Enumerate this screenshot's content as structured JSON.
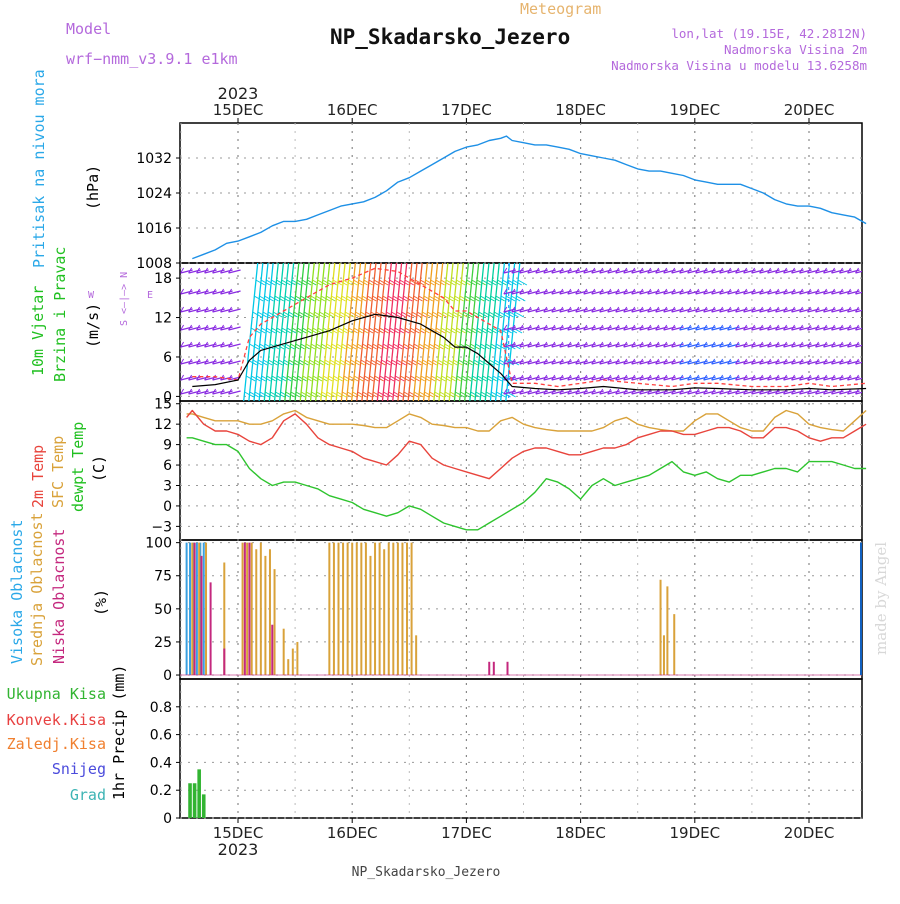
{
  "header": {
    "model_label": "Model",
    "model_name": "wrf−nmm_v3.9.1  e1km",
    "meteogram_label": "Meteogram",
    "station_title": "NP_Skadarsko_Jezero",
    "lonlat": "lon,lat (19.15E, 42.2812N)",
    "altitude": "Nadmorska Visina 2m",
    "model_altitude": "Nadmorska Visina u modelu 13.6258m",
    "footer_station": "NP_Skadarsko_Jezero",
    "watermark": "made by Angel"
  },
  "colors": {
    "pressure": "#1e90e6",
    "temp2m": "#e8443c",
    "sfctemp": "#d9a23a",
    "dewpoint": "#2ec42e",
    "wind_speed": "#000000",
    "gust": "#ff4040",
    "cloud_high": "#3aa0e0",
    "cloud_mid": "#d9a23a",
    "cloud_low": "#c4287e",
    "precip_total": "#32b432",
    "precip_conv": "#e84040",
    "precip_frozen": "#f08030",
    "precip_snow": "#4b4bdc",
    "precip_grad": "#3cb4b4",
    "text_purple": "#b469dc",
    "text_gold": "#e6b46e"
  },
  "time_axis": {
    "year": "2023",
    "day_labels": [
      "15DEC",
      "16DEC",
      "17DEC",
      "18DEC",
      "19DEC",
      "20DEC"
    ]
  },
  "panels": {
    "pressure": {
      "label": "Pritisak na nivou mora",
      "unit": "(hPa)",
      "ticks": [
        "1008",
        "1016",
        "1024",
        "1032"
      ]
    },
    "wind": {
      "label_line1": "10m Vjetar",
      "label_line2": "Brzina i Pravac",
      "unit": "(m/s)",
      "compass_ns": "S <—|—> N",
      "compass_w": "W",
      "compass_e": "E",
      "ticks": [
        "0",
        "6",
        "12",
        "18"
      ]
    },
    "temperature": {
      "label_2m": "2m Temp",
      "label_sfc": "SFC Temp",
      "label_dew": "dewpt Temp",
      "unit": "(C)",
      "ticks": [
        "−3",
        "0",
        "3",
        "6",
        "9",
        "12",
        "15"
      ]
    },
    "cloud": {
      "label_high": "Visoka Oblacnost",
      "label_mid": "Srednja Oblacnost",
      "label_low": "Niska Oblacnost",
      "unit": "(%)",
      "ticks": [
        "0",
        "25",
        "50",
        "75",
        "100"
      ]
    },
    "precip": {
      "legend_total": "Ukupna Kisa",
      "legend_conv": "Konvek.Kisa",
      "legend_frozen": "Zaledj.Kisa",
      "legend_snow": "Snijeg",
      "legend_grad": "Grad",
      "unit": "1hr Precip (mm)",
      "ticks": [
        "0",
        "0.2",
        "0.4",
        "0.6",
        "0.8"
      ]
    }
  },
  "chart_data": [
    {
      "type": "line",
      "panel": "pressure",
      "ylim": [
        1008,
        1040
      ],
      "x_days": [
        14.6,
        14.7,
        14.8,
        14.9,
        15.0,
        15.1,
        15.2,
        15.3,
        15.4,
        15.5,
        15.6,
        15.7,
        15.8,
        15.9,
        16.0,
        16.1,
        16.2,
        16.3,
        16.4,
        16.5,
        16.6,
        16.7,
        16.8,
        16.9,
        17.0,
        17.1,
        17.2,
        17.3,
        17.35,
        17.4,
        17.5,
        17.6,
        17.7,
        17.8,
        17.9,
        18.0,
        18.1,
        18.2,
        18.3,
        18.4,
        18.5,
        18.6,
        18.7,
        18.8,
        18.9,
        19.0,
        19.1,
        19.2,
        19.3,
        19.4,
        19.5,
        19.6,
        19.7,
        19.8,
        19.9,
        20.0,
        20.1,
        20.2,
        20.3,
        20.4,
        20.5
      ],
      "values": [
        1009,
        1010,
        1011,
        1012.5,
        1013,
        1014,
        1015,
        1016.5,
        1017.5,
        1017.5,
        1018,
        1019,
        1020,
        1021,
        1021.5,
        1022,
        1023,
        1024.5,
        1026.5,
        1027.5,
        1029,
        1030.5,
        1032,
        1033.5,
        1034.5,
        1035,
        1036,
        1036.5,
        1037,
        1036,
        1035.5,
        1035,
        1035,
        1034.5,
        1034,
        1033,
        1032.5,
        1032,
        1031.5,
        1030.5,
        1029.5,
        1029,
        1029,
        1028.5,
        1028,
        1027,
        1026.5,
        1026,
        1026,
        1026,
        1025,
        1024,
        1022.5,
        1021.5,
        1021,
        1021,
        1020.5,
        1019.5,
        1019,
        1018.5,
        1017
      ]
    },
    {
      "type": "line",
      "panel": "wind",
      "ylim": [
        0,
        20
      ],
      "x_days": [
        14.6,
        14.8,
        15.0,
        15.1,
        15.2,
        15.4,
        15.6,
        15.8,
        16.0,
        16.2,
        16.4,
        16.6,
        16.8,
        16.9,
        17.0,
        17.1,
        17.2,
        17.3,
        17.4,
        17.6,
        17.8,
        18.0,
        18.2,
        18.5,
        18.8,
        19.0,
        19.2,
        19.5,
        19.8,
        20.0,
        20.2,
        20.5
      ],
      "speed": [
        1.5,
        1.8,
        2.5,
        5.5,
        7,
        8,
        9,
        10,
        11.5,
        12.5,
        12,
        11,
        9,
        7.5,
        7.5,
        6.5,
        5,
        3.5,
        1.5,
        1.2,
        1.0,
        1.2,
        1.5,
        1.0,
        1.0,
        1.3,
        1.2,
        1.0,
        1.0,
        1.2,
        1.0,
        1.2
      ],
      "gust": [
        3,
        3,
        2.5,
        9,
        11,
        13,
        15,
        17,
        18,
        19.5,
        19,
        17,
        15,
        13,
        13,
        12,
        11,
        10,
        2,
        2,
        1.5,
        2,
        2.5,
        2,
        1.5,
        2,
        2,
        1.5,
        1.5,
        2,
        1.5,
        2
      ]
    },
    {
      "type": "line",
      "panel": "temperature",
      "ylim": [
        -5,
        15
      ],
      "x_days": [
        14.55,
        14.6,
        14.7,
        14.8,
        14.9,
        15.0,
        15.1,
        15.2,
        15.3,
        15.4,
        15.5,
        15.6,
        15.7,
        15.8,
        15.9,
        16.0,
        16.1,
        16.2,
        16.3,
        16.4,
        16.5,
        16.6,
        16.7,
        16.8,
        16.9,
        17.0,
        17.1,
        17.2,
        17.3,
        17.4,
        17.5,
        17.6,
        17.7,
        17.8,
        17.9,
        18.0,
        18.1,
        18.2,
        18.3,
        18.4,
        18.5,
        18.6,
        18.7,
        18.8,
        18.9,
        19.0,
        19.1,
        19.2,
        19.3,
        19.4,
        19.5,
        19.6,
        19.7,
        19.8,
        19.9,
        20.0,
        20.1,
        20.2,
        20.3,
        20.4,
        20.5
      ],
      "temp2m": [
        13,
        14,
        12,
        11,
        11,
        10.5,
        9.5,
        9,
        10,
        12.5,
        13.5,
        12,
        10,
        9,
        8.5,
        8,
        7,
        6.5,
        6,
        7.5,
        9.5,
        9,
        7,
        6,
        5.5,
        5,
        4.5,
        4,
        5.5,
        7,
        8,
        8.5,
        8.5,
        8,
        7.5,
        7.5,
        8,
        8.5,
        8.5,
        9,
        10,
        10.5,
        11,
        11,
        10.5,
        10.5,
        11,
        11.5,
        11.5,
        11,
        10,
        10,
        11.5,
        11.5,
        11,
        10,
        9.5,
        10,
        10,
        11,
        12
      ],
      "sfctemp": [
        13.5,
        13.5,
        13,
        12.5,
        12.5,
        12.5,
        12,
        12,
        12.5,
        13.5,
        14,
        13,
        12.5,
        12,
        12,
        12,
        11.8,
        11.5,
        11.5,
        12.5,
        13.5,
        13,
        12,
        11.8,
        11.5,
        11.5,
        11,
        11,
        12.5,
        13,
        12,
        11.5,
        11.2,
        11,
        11,
        11,
        11,
        11.5,
        12.5,
        13,
        12,
        11.5,
        11.2,
        11,
        11,
        12.5,
        13.5,
        13.5,
        12.5,
        11.5,
        11,
        11,
        13,
        14,
        13.5,
        12,
        11.5,
        11.2,
        11,
        12.5,
        14
      ],
      "dewpoint": [
        10,
        10,
        9.5,
        9,
        9,
        8,
        5.5,
        4,
        3,
        3.5,
        3.5,
        3,
        2.5,
        1.5,
        1,
        0.5,
        -0.5,
        -1,
        -1.5,
        -1,
        0,
        -0.5,
        -1.5,
        -2.5,
        -3,
        -3.5,
        -3.5,
        -2.5,
        -1.5,
        -0.5,
        0.5,
        2,
        4,
        3.5,
        2.5,
        1,
        3,
        4,
        3,
        3.5,
        4,
        4.5,
        5.5,
        6.5,
        5,
        4.5,
        5,
        4,
        3.5,
        4.5,
        4.5,
        5,
        5.5,
        5.5,
        5,
        6.5,
        6.5,
        6.5,
        6,
        5.5,
        5.5
      ]
    },
    {
      "type": "bar",
      "panel": "cloud",
      "ylim": [
        0,
        100
      ],
      "series": [
        {
          "key": "high",
          "x_days": [
            14.55,
            14.58,
            14.61,
            14.64,
            14.67,
            14.7
          ],
          "values": [
            100,
            100,
            100,
            100,
            100,
            100
          ]
        },
        {
          "key": "mid",
          "x_days": [
            14.6,
            14.66,
            14.72,
            14.88,
            15.04,
            15.08,
            15.12,
            15.16,
            15.2,
            15.24,
            15.28,
            15.32,
            15.4,
            15.44,
            15.48,
            15.52,
            15.8,
            15.84,
            15.88,
            15.92,
            15.96,
            16.0,
            16.04,
            16.08,
            16.12,
            16.16,
            16.2,
            16.24,
            16.28,
            16.32,
            16.36,
            16.4,
            16.44,
            16.48,
            16.52,
            16.56,
            18.7,
            18.73,
            18.76,
            18.82
          ],
          "values": [
            100,
            100,
            100,
            85,
            100,
            100,
            100,
            95,
            100,
            90,
            95,
            80,
            35,
            12,
            20,
            25,
            100,
            100,
            100,
            100,
            100,
            100,
            100,
            100,
            100,
            90,
            100,
            100,
            95,
            100,
            100,
            100,
            100,
            100,
            100,
            30,
            72,
            30,
            67,
            46
          ]
        },
        {
          "key": "low",
          "x_days": [
            14.62,
            14.68,
            14.76,
            14.88,
            15.06,
            15.1,
            15.3,
            17.2,
            17.24,
            17.36
          ],
          "values": [
            100,
            90,
            70,
            20,
            100,
            100,
            38,
            10,
            10,
            10
          ]
        }
      ]
    },
    {
      "type": "bar",
      "panel": "precip",
      "ylim": [
        0,
        1.0
      ],
      "series": [
        {
          "key": "total",
          "x_days": [
            14.58,
            14.62,
            14.66,
            14.7
          ],
          "values": [
            0.25,
            0.25,
            0.35,
            0.17
          ]
        }
      ]
    }
  ]
}
